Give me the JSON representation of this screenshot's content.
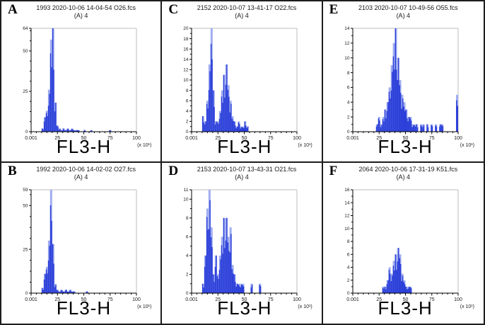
{
  "colors": {
    "trace_dark": "#2b3fd9",
    "trace_light": "#9fadf0",
    "frame_gray": "#bcbcbc",
    "axis_black": "#000000",
    "border_black": "#1d1d1d"
  },
  "chart_data": [
    {
      "type": "bar",
      "panel": "A",
      "title": "1993 2020-10-06 14-04-54 O26.fcs",
      "subtitle": "(A) 4",
      "xlabel": "FL3-H",
      "x_scale_note": "(x 10¹)",
      "xlim": [
        0.001,
        100
      ],
      "x_tick_values": [
        0,
        25,
        50,
        75,
        100
      ],
      "x_tick_labels": [
        "0.001",
        "25",
        "50",
        "75",
        "100"
      ],
      "x_minor_step": 5,
      "ylim": [
        0,
        64
      ],
      "y_ticks": [
        0,
        25,
        50,
        64
      ],
      "y_minor_step": 6.25,
      "bin_start": 0,
      "bin_width": 2,
      "values": [
        0,
        0,
        0,
        0,
        0,
        2,
        9,
        13,
        26,
        57,
        64,
        18,
        4,
        2,
        1,
        2,
        1,
        2,
        1,
        2,
        1,
        1,
        1,
        0,
        0,
        1,
        0,
        0,
        1,
        0,
        0,
        0,
        0,
        0,
        0,
        0,
        0,
        1,
        0,
        0,
        0,
        0,
        0,
        0,
        0,
        0,
        0,
        0,
        0,
        0
      ]
    },
    {
      "type": "bar",
      "panel": "B",
      "title": "1992 2020-10-06 14-02-02 O27.fcs",
      "subtitle": "(A) 4",
      "xlabel": "FL3-H",
      "x_scale_note": "(x 10¹)",
      "xlim": [
        0.001,
        100
      ],
      "x_tick_values": [
        0,
        25,
        50,
        75,
        100
      ],
      "x_tick_labels": [
        "0.001",
        "25",
        "50",
        "75",
        "100"
      ],
      "x_minor_step": 5,
      "ylim": [
        0,
        59
      ],
      "y_ticks": [
        0,
        25,
        50,
        59
      ],
      "y_minor_step": 6.25,
      "bin_start": 0,
      "bin_width": 2,
      "values": [
        0,
        0,
        0,
        0,
        0,
        3,
        11,
        15,
        30,
        59,
        28,
        5,
        2,
        1,
        2,
        1,
        2,
        1,
        2,
        1,
        1,
        0,
        0,
        0,
        0,
        0,
        1,
        0,
        0,
        0,
        0,
        0,
        0,
        0,
        0,
        0,
        0,
        0,
        0,
        0,
        0,
        0,
        0,
        0,
        0,
        0,
        0,
        0,
        0,
        0
      ]
    },
    {
      "type": "bar",
      "panel": "C",
      "title": "2152 2020-10-07 13-41-17 O22.fcs",
      "subtitle": "(A) 4",
      "xlabel": "FL3-H",
      "x_scale_note": "(x 10¹)",
      "xlim": [
        0.001,
        100
      ],
      "x_tick_values": [
        0,
        25,
        50,
        75,
        100
      ],
      "x_tick_labels": [
        "0.001",
        "25",
        "50",
        "75",
        "100"
      ],
      "x_minor_step": 5,
      "ylim": [
        0,
        20
      ],
      "y_ticks": [
        0,
        2,
        4,
        6,
        8,
        10,
        12,
        14,
        16,
        18,
        20
      ],
      "y_minor_step": 1,
      "bin_start": 0,
      "bin_width": 2,
      "values": [
        0,
        0,
        0,
        0,
        0,
        3,
        2,
        6,
        13,
        20,
        8,
        2,
        2,
        4,
        8,
        11,
        13,
        9,
        6,
        3,
        2,
        1,
        2,
        1,
        1,
        2,
        1,
        0,
        0,
        0,
        0,
        0,
        0,
        0,
        0,
        0,
        0,
        0,
        0,
        0,
        0,
        0,
        0,
        0,
        0,
        0,
        0,
        0,
        0,
        0
      ]
    },
    {
      "type": "bar",
      "panel": "D",
      "title": "2153 2020-10-07 13-43-31 O21.fcs",
      "subtitle": "(A) 4",
      "xlabel": "FL3-H",
      "x_scale_note": "(x 10¹)",
      "xlim": [
        0.001,
        100
      ],
      "x_tick_values": [
        0,
        25,
        50,
        75,
        100
      ],
      "x_tick_labels": [
        "0.001",
        "25",
        "50",
        "75",
        "100"
      ],
      "x_minor_step": 5,
      "ylim": [
        0,
        11
      ],
      "y_ticks": [
        0,
        2,
        4,
        6,
        8,
        10,
        11
      ],
      "y_minor_step": 1,
      "bin_start": 0,
      "bin_width": 2,
      "values": [
        0,
        0,
        0,
        0,
        0,
        1,
        4,
        9,
        11,
        7,
        2,
        4,
        2,
        4,
        6,
        8,
        8,
        6,
        7,
        3,
        2,
        1,
        1,
        1,
        1,
        0,
        0,
        0,
        1,
        0,
        0,
        0,
        1,
        0,
        0,
        0,
        0,
        0,
        0,
        0,
        0,
        0,
        0,
        0,
        0,
        0,
        0,
        0,
        0,
        0
      ]
    },
    {
      "type": "bar",
      "panel": "E",
      "title": "2103 2020-10-07 10-49-56 O55.fcs",
      "subtitle": "(A) 4",
      "xlabel": "FL3-H",
      "x_scale_note": "(x 10¹)",
      "xlim": [
        0.001,
        100
      ],
      "x_tick_values": [
        0,
        25,
        50,
        75,
        100
      ],
      "x_tick_labels": [
        "0.001",
        "25",
        "50",
        "75",
        "100"
      ],
      "x_minor_step": 5,
      "ylim": [
        0,
        14
      ],
      "y_ticks": [
        0,
        2,
        4,
        6,
        8,
        10,
        12,
        14
      ],
      "y_minor_step": 1,
      "bin_start": 0,
      "bin_width": 2,
      "values": [
        0,
        0,
        0,
        0,
        0,
        0,
        0,
        0,
        0,
        0,
        0,
        1,
        2,
        1,
        2,
        3,
        4,
        6,
        9,
        12,
        14,
        10,
        7,
        5,
        4,
        3,
        2,
        2,
        1,
        1,
        1,
        0,
        1,
        1,
        0,
        1,
        0,
        1,
        0,
        1,
        0,
        1,
        1,
        0,
        0,
        0,
        0,
        0,
        0,
        5
      ]
    },
    {
      "type": "bar",
      "panel": "F",
      "title": "2064 2020-10-06 17-31-19 K51.fcs",
      "subtitle": "(A) 4",
      "xlabel": "FL3-H",
      "x_scale_note": "(x 10¹)",
      "xlim": [
        0.001,
        100
      ],
      "x_tick_values": [
        0,
        25,
        50,
        75,
        100
      ],
      "x_tick_labels": [
        "0.001",
        "25",
        "50",
        "75",
        "100"
      ],
      "x_minor_step": 5,
      "ylim": [
        0,
        16
      ],
      "y_ticks": [
        0,
        2,
        4,
        6,
        8,
        10,
        12,
        14,
        16
      ],
      "y_minor_step": 1,
      "bin_start": 0,
      "bin_width": 2,
      "values": [
        0,
        0,
        0,
        0,
        0,
        0,
        0,
        0,
        0,
        0,
        0,
        0,
        0,
        0,
        1,
        1,
        2,
        4,
        3,
        5,
        6,
        7,
        6,
        3,
        2,
        1,
        1,
        1,
        0,
        0,
        0,
        0,
        0,
        0,
        0,
        0,
        0,
        0,
        0,
        0,
        0,
        0,
        0,
        0,
        0,
        0,
        0,
        0,
        0,
        0
      ]
    }
  ]
}
